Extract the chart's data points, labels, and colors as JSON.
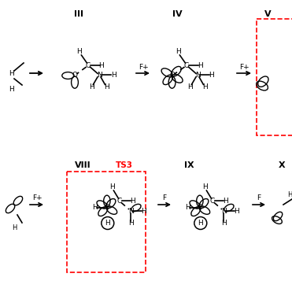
{
  "bg_color": "#ffffff",
  "label_III": "III",
  "label_IV": "IV",
  "label_V": "V",
  "label_VIII": "VIII",
  "label_TS3": "TS3",
  "label_IX": "IX",
  "label_X": "X"
}
